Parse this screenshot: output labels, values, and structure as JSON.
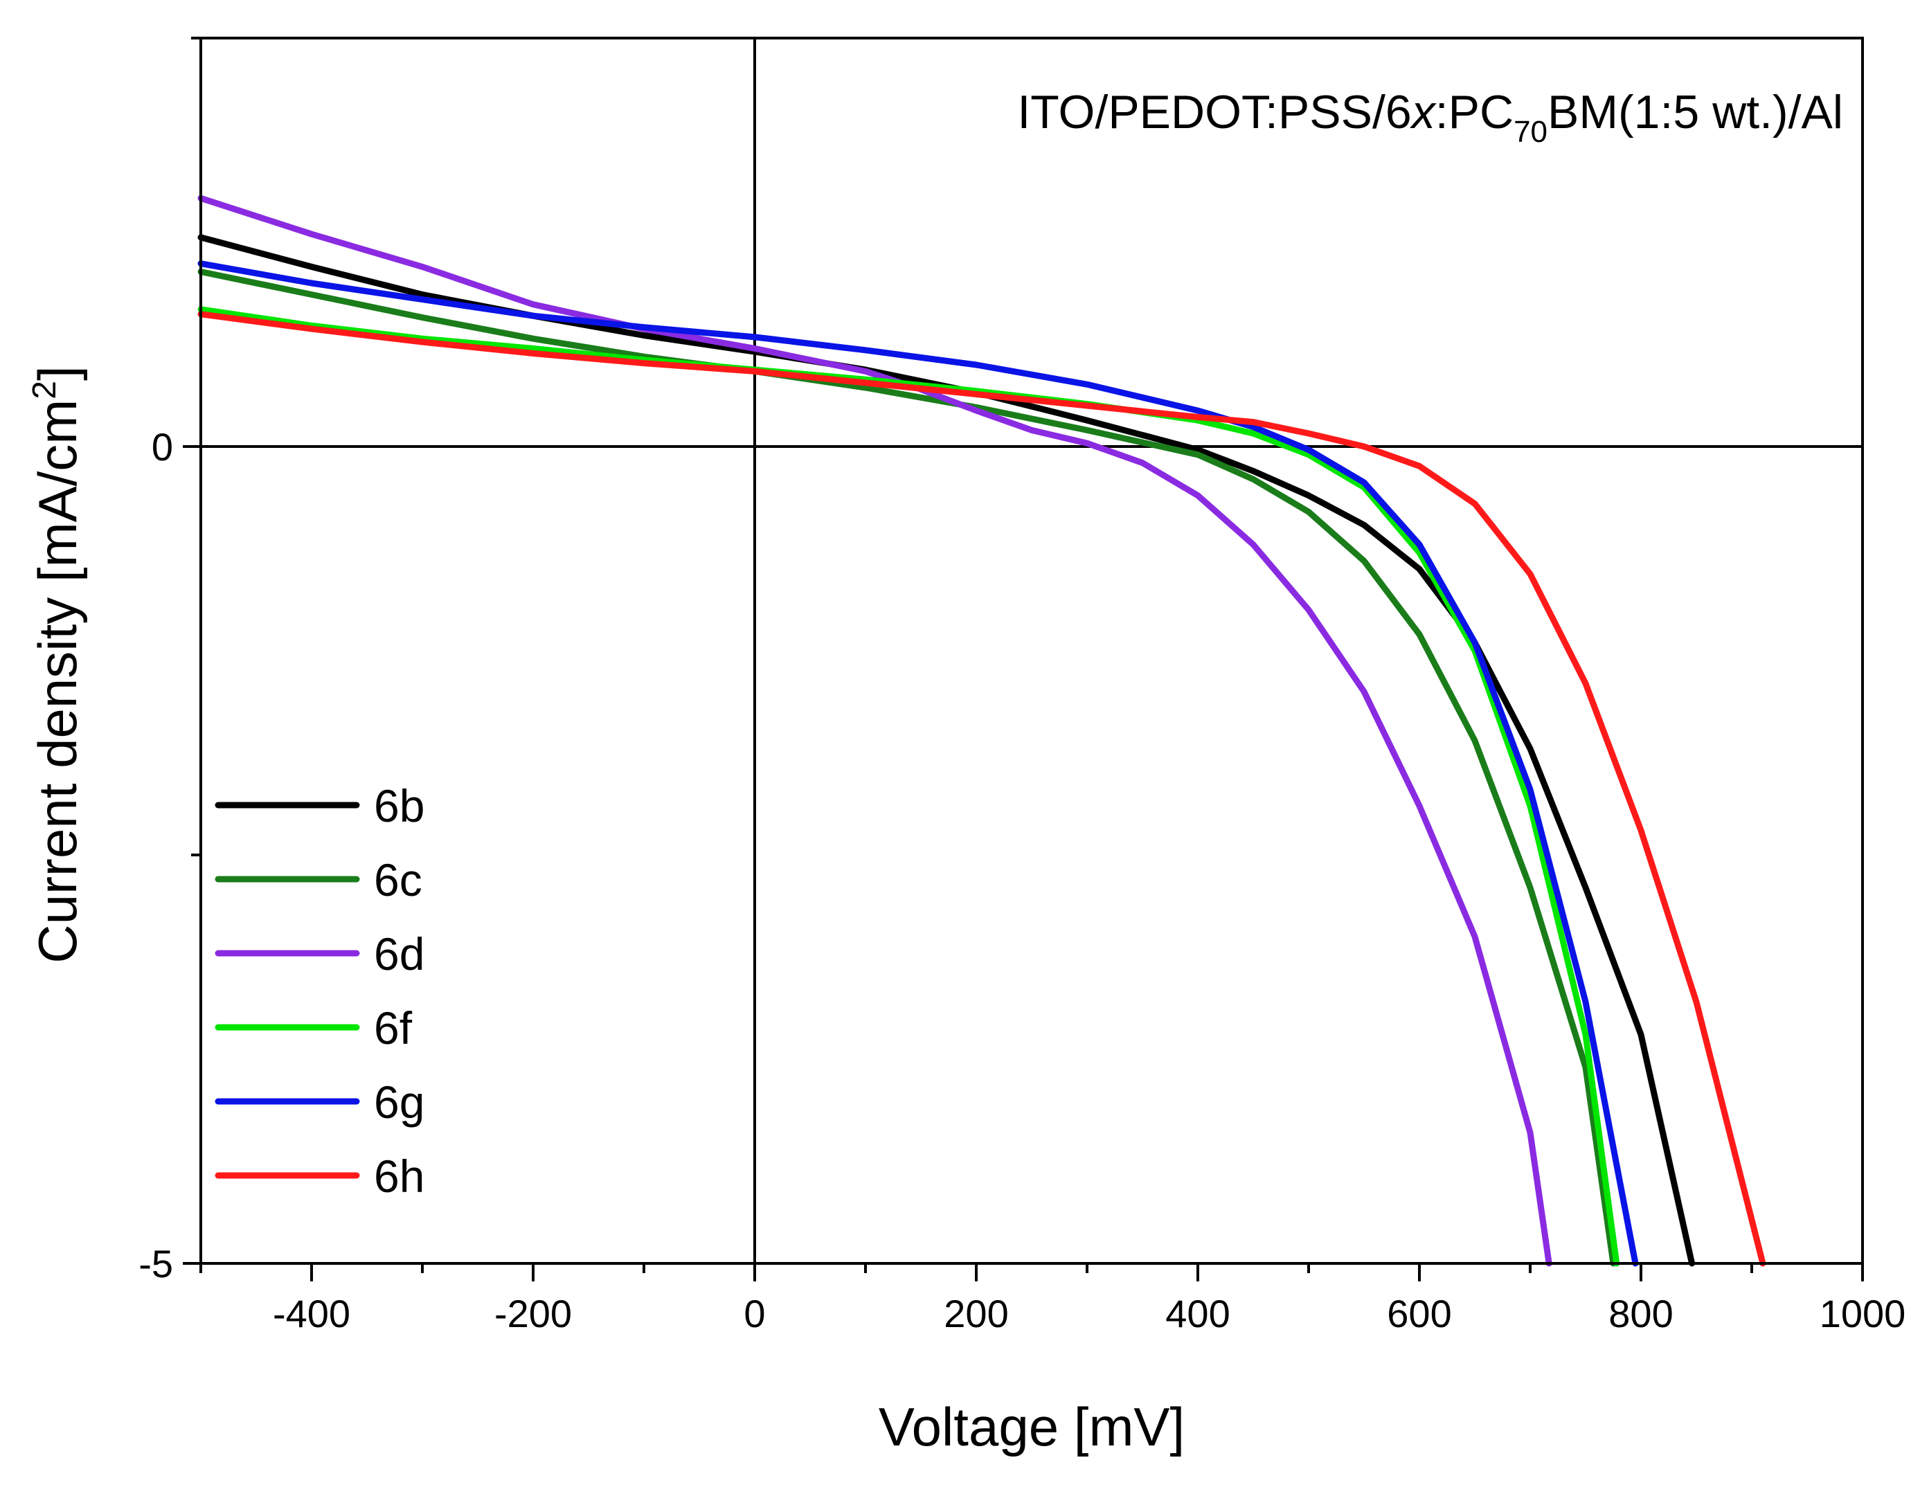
{
  "chart_data": {
    "type": "line",
    "title": "",
    "annotation": {
      "prefix": "ITO/PEDOT:PSS/6",
      "italic": "x",
      "mid": ":PC",
      "sub": "70",
      "suffix": "BM(1:5 wt.)/Al"
    },
    "xlabel": "Voltage [mV]",
    "ylabel": "Current density [mA/cm",
    "ylabel_sup": "2",
    "ylabel_end": "]",
    "xlim": [
      -500,
      1000
    ],
    "ylim": [
      -5,
      2.5
    ],
    "x_ticks": [
      -400,
      -200,
      0,
      200,
      400,
      600,
      800,
      1000
    ],
    "x_tick_labels": [
      "-400",
      "-200",
      "0",
      "200",
      "400",
      "600",
      "800",
      "1000"
    ],
    "y_ticks": [
      0,
      -5
    ],
    "y_tick_labels": [
      "0",
      "-5"
    ],
    "legend_position": "lower-left",
    "series": [
      {
        "name": "6b",
        "color": "#000000",
        "points": [
          [
            -500,
            1.28
          ],
          [
            -400,
            1.1
          ],
          [
            -300,
            0.93
          ],
          [
            -200,
            0.8
          ],
          [
            -100,
            0.68
          ],
          [
            0,
            0.58
          ],
          [
            100,
            0.47
          ],
          [
            200,
            0.33
          ],
          [
            300,
            0.16
          ],
          [
            400,
            -0.02
          ],
          [
            450,
            -0.15
          ],
          [
            500,
            -0.3
          ],
          [
            550,
            -0.48
          ],
          [
            600,
            -0.75
          ],
          [
            650,
            -1.2
          ],
          [
            700,
            -1.85
          ],
          [
            750,
            -2.7
          ],
          [
            800,
            -3.6
          ],
          [
            846,
            -5.0
          ]
        ]
      },
      {
        "name": "6c",
        "color": "#1a7d1a",
        "points": [
          [
            -500,
            1.07
          ],
          [
            -400,
            0.93
          ],
          [
            -300,
            0.79
          ],
          [
            -200,
            0.66
          ],
          [
            -100,
            0.55
          ],
          [
            0,
            0.46
          ],
          [
            100,
            0.36
          ],
          [
            200,
            0.24
          ],
          [
            300,
            0.1
          ],
          [
            400,
            -0.05
          ],
          [
            450,
            -0.2
          ],
          [
            500,
            -0.4
          ],
          [
            550,
            -0.7
          ],
          [
            600,
            -1.15
          ],
          [
            650,
            -1.8
          ],
          [
            700,
            -2.7
          ],
          [
            750,
            -3.8
          ],
          [
            775,
            -5.0
          ]
        ]
      },
      {
        "name": "6d",
        "color": "#8a2be2",
        "points": [
          [
            -500,
            1.52
          ],
          [
            -400,
            1.3
          ],
          [
            -300,
            1.1
          ],
          [
            -200,
            0.87
          ],
          [
            -100,
            0.72
          ],
          [
            0,
            0.6
          ],
          [
            100,
            0.46
          ],
          [
            150,
            0.35
          ],
          [
            200,
            0.22
          ],
          [
            250,
            0.1
          ],
          [
            300,
            0.02
          ],
          [
            350,
            -0.1
          ],
          [
            400,
            -0.3
          ],
          [
            450,
            -0.6
          ],
          [
            500,
            -1.0
          ],
          [
            550,
            -1.5
          ],
          [
            600,
            -2.2
          ],
          [
            650,
            -3.0
          ],
          [
            700,
            -4.2
          ],
          [
            717,
            -5.0
          ]
        ]
      },
      {
        "name": "6f",
        "color": "#00e600",
        "points": [
          [
            -500,
            0.84
          ],
          [
            -400,
            0.74
          ],
          [
            -300,
            0.66
          ],
          [
            -200,
            0.6
          ],
          [
            -100,
            0.53
          ],
          [
            0,
            0.47
          ],
          [
            100,
            0.41
          ],
          [
            200,
            0.34
          ],
          [
            300,
            0.26
          ],
          [
            400,
            0.16
          ],
          [
            450,
            0.08
          ],
          [
            500,
            -0.05
          ],
          [
            550,
            -0.25
          ],
          [
            600,
            -0.65
          ],
          [
            650,
            -1.25
          ],
          [
            700,
            -2.2
          ],
          [
            750,
            -3.6
          ],
          [
            778,
            -5.0
          ]
        ]
      },
      {
        "name": "6g",
        "color": "#0a14e6",
        "points": [
          [
            -500,
            1.12
          ],
          [
            -400,
            1.0
          ],
          [
            -300,
            0.9
          ],
          [
            -200,
            0.8
          ],
          [
            -100,
            0.73
          ],
          [
            0,
            0.67
          ],
          [
            100,
            0.59
          ],
          [
            200,
            0.5
          ],
          [
            300,
            0.38
          ],
          [
            400,
            0.22
          ],
          [
            450,
            0.12
          ],
          [
            500,
            -0.02
          ],
          [
            550,
            -0.22
          ],
          [
            600,
            -0.6
          ],
          [
            650,
            -1.2
          ],
          [
            700,
            -2.1
          ],
          [
            750,
            -3.4
          ],
          [
            795,
            -5.0
          ]
        ]
      },
      {
        "name": "6h",
        "color": "#ff1a1a",
        "points": [
          [
            -500,
            0.81
          ],
          [
            -400,
            0.72
          ],
          [
            -300,
            0.64
          ],
          [
            -200,
            0.57
          ],
          [
            -100,
            0.51
          ],
          [
            0,
            0.46
          ],
          [
            100,
            0.39
          ],
          [
            200,
            0.32
          ],
          [
            300,
            0.25
          ],
          [
            400,
            0.18
          ],
          [
            450,
            0.15
          ],
          [
            500,
            0.08
          ],
          [
            550,
            0.0
          ],
          [
            600,
            -0.12
          ],
          [
            650,
            -0.35
          ],
          [
            700,
            -0.78
          ],
          [
            750,
            -1.45
          ],
          [
            800,
            -2.35
          ],
          [
            850,
            -3.4
          ],
          [
            910,
            -5.0
          ]
        ]
      }
    ]
  }
}
